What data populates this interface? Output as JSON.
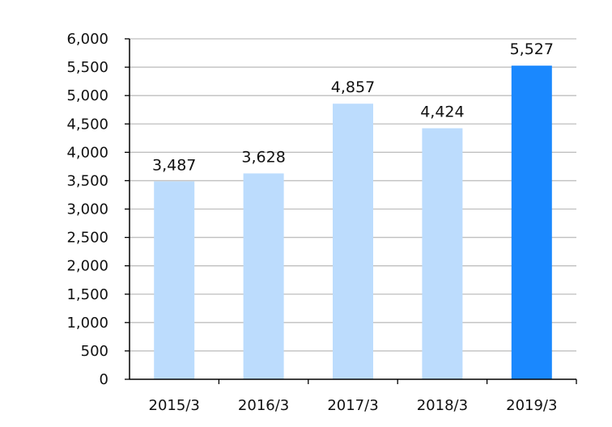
{
  "chart_data": {
    "type": "bar",
    "title": "",
    "xlabel": "",
    "ylabel": "",
    "categories": [
      "2015/3",
      "2016/3",
      "2017/3",
      "2018/3",
      "2019/3"
    ],
    "values": [
      3487,
      3628,
      4857,
      4424,
      5527
    ],
    "data_labels": [
      "3,487",
      "3,628",
      "4,857",
      "4,424",
      "5,527"
    ],
    "ylim": [
      0,
      6000
    ],
    "yticks": [
      0,
      500,
      1000,
      1500,
      2000,
      2500,
      3000,
      3500,
      4000,
      4500,
      5000,
      5500,
      6000
    ],
    "ytick_labels": [
      "0",
      "500",
      "1,000",
      "1,500",
      "2,000",
      "2,500",
      "3,000",
      "3,500",
      "4,000",
      "4,500",
      "5,000",
      "5,500",
      "6,000"
    ],
    "grid": true,
    "legend": "none",
    "colors": {
      "bar": "#bcdcfd",
      "highlight_bar": "#1a88fe",
      "grid": "#bfbfbf",
      "axis": "#000000"
    },
    "highlight_index": 4
  }
}
